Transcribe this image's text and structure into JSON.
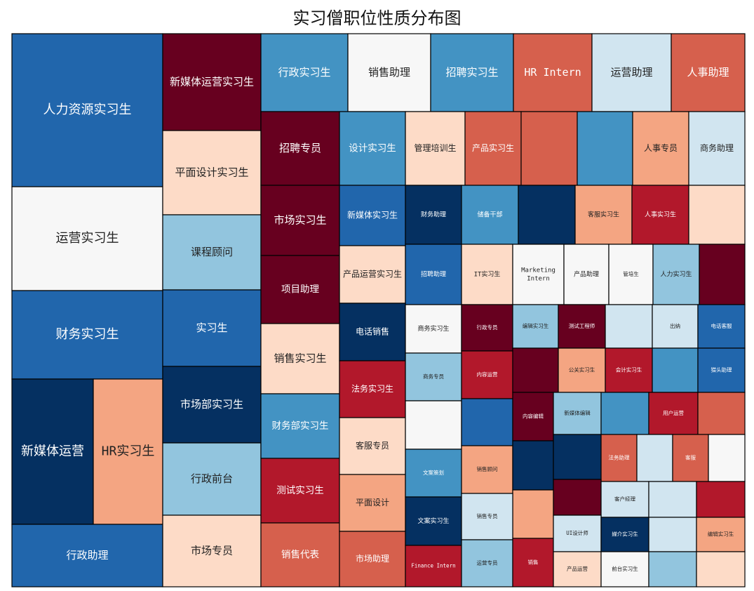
{
  "chart_data": {
    "type": "treemap",
    "title": "实习僧职位性质分布图",
    "cells": [
      {
        "label": "人力资源实习生",
        "color": "#2166ac"
      },
      {
        "label": "运营实习生",
        "color": "#f7f7f7"
      },
      {
        "label": "财务实习生",
        "color": "#2166ac"
      },
      {
        "label": "新媒体运营",
        "color": "#053061"
      },
      {
        "label": "HR实习生",
        "color": "#f4a582"
      },
      {
        "label": "行政助理",
        "color": "#2166ac"
      },
      {
        "label": "新媒体运营实习生",
        "color": "#67001f"
      },
      {
        "label": "平面设计实习生",
        "color": "#fddbc7"
      },
      {
        "label": "课程顾问",
        "color": "#92c5de"
      },
      {
        "label": "实习生",
        "color": "#2166ac"
      },
      {
        "label": "市场部实习生",
        "color": "#053061"
      },
      {
        "label": "行政前台",
        "color": "#92c5de"
      },
      {
        "label": "市场专员",
        "color": "#fddbc7"
      },
      {
        "label": "行政实习生",
        "color": "#4393c3"
      },
      {
        "label": "销售助理",
        "color": "#f7f7f7"
      },
      {
        "label": "招聘实习生",
        "color": "#4393c3"
      },
      {
        "label": "HR Intern",
        "color": "#d6604d"
      },
      {
        "label": "运营助理",
        "color": "#d1e5f0"
      },
      {
        "label": "人事助理",
        "color": "#d6604d"
      },
      {
        "label": "招聘专员",
        "color": "#67001f"
      },
      {
        "label": "市场实习生",
        "color": "#67001f"
      },
      {
        "label": "项目助理",
        "color": "#67001f"
      },
      {
        "label": "销售实习生",
        "color": "#fddbc7"
      },
      {
        "label": "财务部实习生",
        "color": "#4393c3"
      },
      {
        "label": "测试实习生",
        "color": "#b2182b"
      },
      {
        "label": "销售代表",
        "color": "#d6604d"
      },
      {
        "label": "设计实习生",
        "color": "#4393c3"
      },
      {
        "label": "管理培训生",
        "color": "#fddbc7"
      },
      {
        "label": "产品实习生",
        "color": "#d6604d"
      },
      {
        "label": "",
        "color": "#d6604d"
      },
      {
        "label": "",
        "color": "#4393c3"
      },
      {
        "label": "人事专员",
        "color": "#f4a582"
      },
      {
        "label": "商务助理",
        "color": "#d1e5f0"
      },
      {
        "label": "新媒体实习生",
        "color": "#2166ac"
      },
      {
        "label": "财务助理",
        "color": "#053061"
      },
      {
        "label": "储备干部",
        "color": "#4393c3"
      },
      {
        "label": "",
        "color": "#053061"
      },
      {
        "label": "客服实习生",
        "color": "#f4a582"
      },
      {
        "label": "人事实习生",
        "color": "#b2182b"
      },
      {
        "label": "",
        "color": "#fddbc7"
      },
      {
        "label": "产品运营实习生",
        "color": "#fddbc7"
      },
      {
        "label": "招聘助理",
        "color": "#2166ac"
      },
      {
        "label": "IT实习生",
        "color": "#fddbc7"
      },
      {
        "label": "Marketing Intern",
        "color": "#f7f7f7"
      },
      {
        "label": "产品助理",
        "color": "#f7f7f7"
      },
      {
        "label": "管培生",
        "color": "#f7f7f7"
      },
      {
        "label": "人力实习生",
        "color": "#92c5de"
      },
      {
        "label": "",
        "color": "#67001f"
      },
      {
        "label": "电话销售",
        "color": "#053061"
      },
      {
        "label": "商务实习生",
        "color": "#f7f7f7"
      },
      {
        "label": "行政专员",
        "color": "#67001f"
      },
      {
        "label": "编辑实习生",
        "color": "#92c5de"
      },
      {
        "label": "测试工程师",
        "color": "#67001f"
      },
      {
        "label": "",
        "color": "#d1e5f0"
      },
      {
        "label": "出纳",
        "color": "#d1e5f0"
      },
      {
        "label": "电话客服",
        "color": "#2166ac"
      },
      {
        "label": "法务实习生",
        "color": "#b2182b"
      },
      {
        "label": "商务专员",
        "color": "#92c5de"
      },
      {
        "label": "内容运营",
        "color": "#b2182b"
      },
      {
        "label": "",
        "color": "#67001f"
      },
      {
        "label": "公关实习生",
        "color": "#f4a582"
      },
      {
        "label": "会计实习生",
        "color": "#b2182b"
      },
      {
        "label": "",
        "color": "#4393c3"
      },
      {
        "label": "猎头助理",
        "color": "#2166ac"
      },
      {
        "label": "客服专员",
        "color": "#fddbc7"
      },
      {
        "label": "",
        "color": "#f7f7f7"
      },
      {
        "label": "",
        "color": "#2166ac"
      },
      {
        "label": "内容编辑",
        "color": "#67001f"
      },
      {
        "label": "新媒体编辑",
        "color": "#92c5de"
      },
      {
        "label": "",
        "color": "#4393c3"
      },
      {
        "label": "用户运营",
        "color": "#b2182b"
      },
      {
        "label": "",
        "color": "#d6604d"
      },
      {
        "label": "平面设计",
        "color": "#f4a582"
      },
      {
        "label": "文案策划",
        "color": "#4393c3"
      },
      {
        "label": "销售顾问",
        "color": "#f4a582"
      },
      {
        "label": "",
        "color": "#053061"
      },
      {
        "label": "",
        "color": "#053061"
      },
      {
        "label": "法务助理",
        "color": "#d6604d"
      },
      {
        "label": "",
        "color": "#d1e5f0"
      },
      {
        "label": "客服",
        "color": "#d6604d"
      },
      {
        "label": "",
        "color": "#f7f7f7"
      },
      {
        "label": "",
        "color": "#f4a582"
      },
      {
        "label": "",
        "color": "#67001f"
      },
      {
        "label": "客户经理",
        "color": "#d1e5f0"
      },
      {
        "label": "",
        "color": "#d1e5f0"
      },
      {
        "label": "",
        "color": "#b2182b"
      },
      {
        "label": "市场助理",
        "color": "#d6604d"
      },
      {
        "label": "文案实习生",
        "color": "#053061"
      },
      {
        "label": "销售专员",
        "color": "#d1e5f0"
      },
      {
        "label": "Finance Intern",
        "color": "#b2182b"
      },
      {
        "label": "运营专员",
        "color": "#92c5de"
      },
      {
        "label": "销售",
        "color": "#b2182b"
      },
      {
        "label": "UI设计师",
        "color": "#d1e5f0"
      },
      {
        "label": "产品运营",
        "color": "#fddbc7"
      },
      {
        "label": "媒介实习生",
        "color": "#053061"
      },
      {
        "label": "前台实习生",
        "color": "#f7f7f7"
      },
      {
        "label": "",
        "color": "#d1e5f0"
      },
      {
        "label": "",
        "color": "#92c5de"
      },
      {
        "label": "编辑实习生",
        "color": "#f4a582"
      },
      {
        "label": "",
        "color": "#fddbc7"
      }
    ]
  }
}
